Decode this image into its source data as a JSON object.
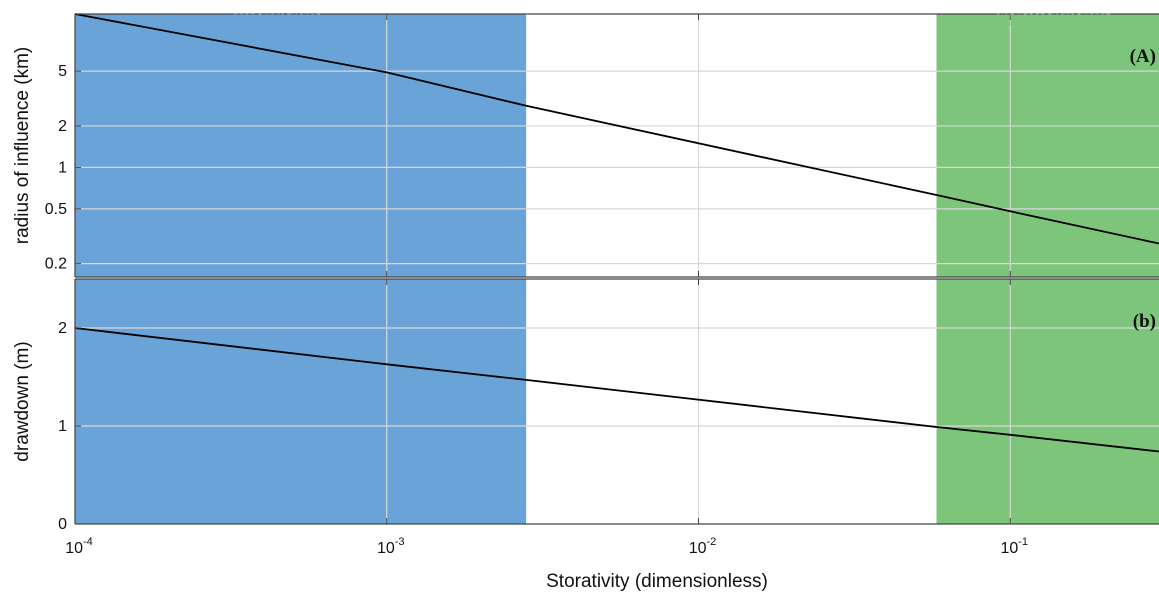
{
  "chart_data": {
    "type": "line",
    "x_axis": {
      "label": "Storativity (dimensionless)",
      "scale": "log",
      "range": [
        0.0001,
        0.3
      ],
      "ticks": [
        {
          "value": 0.0001,
          "base": "10",
          "exp": "-4"
        },
        {
          "value": 0.001,
          "base": "10",
          "exp": "-3"
        },
        {
          "value": 0.01,
          "base": "10",
          "exp": "-2"
        },
        {
          "value": 0.1,
          "base": "10",
          "exp": "-1"
        }
      ]
    },
    "regions": [
      {
        "label": "CONFINED",
        "x_range": [
          0.0001,
          0.0028
        ],
        "color": "#6aa3d8"
      },
      {
        "label": "UNCONFINED",
        "x_range": [
          0.058,
          0.3
        ],
        "color": "#7dc57a"
      }
    ],
    "panels": [
      {
        "label": "(A)",
        "ylabel": "radius of influence (km)",
        "yscale": "log",
        "ylim": [
          0.16,
          13
        ],
        "yticks": [
          {
            "value": 0.2,
            "label": "0.2"
          },
          {
            "value": 0.5,
            "label": "0.5"
          },
          {
            "value": 1,
            "label": "1"
          },
          {
            "value": 2,
            "label": "2"
          },
          {
            "value": 5,
            "label": "5"
          }
        ],
        "series": [
          {
            "x": [
              0.0001,
              0.001,
              0.0028,
              0.058,
              0.1,
              0.3
            ],
            "y": [
              13.0,
              4.9,
              2.8,
              0.63,
              0.48,
              0.28
            ]
          }
        ]
      },
      {
        "label": "(b)",
        "ylabel": "drawdown (m)",
        "yscale": "linear",
        "ylim": [
          0,
          2.5
        ],
        "yticks": [
          {
            "value": 0,
            "label": "0"
          },
          {
            "value": 1,
            "label": "1"
          },
          {
            "value": 2,
            "label": "2"
          }
        ],
        "series": [
          {
            "x": [
              0.0001,
              0.001,
              0.0028,
              0.058,
              0.1,
              0.3
            ],
            "y": [
              2.0,
              1.63,
              1.47,
              0.99,
              0.91,
              0.74
            ]
          }
        ]
      }
    ],
    "grid": true,
    "line_color": "#000000"
  }
}
